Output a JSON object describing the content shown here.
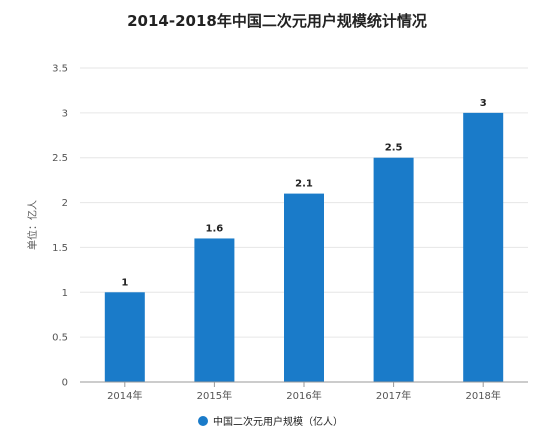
{
  "chart_data": {
    "type": "bar",
    "title": "2014-2018年中国二次元用户规模统计情况",
    "categories": [
      "2014年",
      "2015年",
      "2016年",
      "2017年",
      "2018年"
    ],
    "series": [
      {
        "name": "中国二次元用户规模（亿人）",
        "values": [
          1,
          1.6,
          2.1,
          2.5,
          3
        ],
        "color": "#1a7bc9"
      }
    ],
    "data_labels": [
      "1",
      "1.6",
      "2.1",
      "2.5",
      "3"
    ],
    "ylabel": "单位：亿人",
    "xlabel": "",
    "ylim": [
      0,
      3.5
    ],
    "yticks": [
      "0",
      "0.5",
      "1",
      "1.5",
      "2",
      "2.5",
      "3",
      "3.5"
    ],
    "grid": true,
    "legend_position": "bottom-center"
  }
}
